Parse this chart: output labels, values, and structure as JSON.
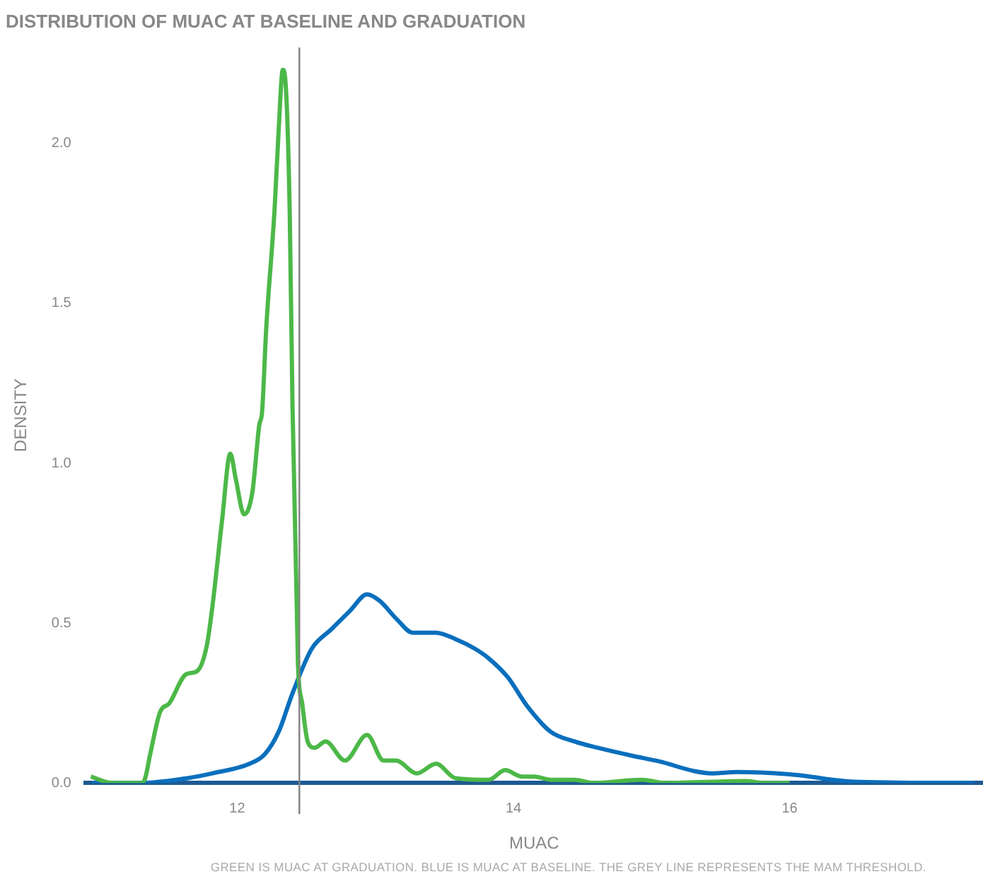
{
  "chart_data": {
    "type": "line",
    "title": "DISTRIBUTION OF MUAC AT BASELINE AND GRADUATION",
    "xlabel": "MUAC",
    "ylabel": "DENSITY",
    "annotations": [
      "GREEN IS MUAC AT GRADUATION. BLUE IS MUAC AT BASELINE. THE GREY LINE REPRESENTS THE MAM THRESHOLD."
    ],
    "xlim": [
      10.9,
      17.4
    ],
    "ylim": [
      0,
      2.3
    ],
    "xticks": [
      12,
      14,
      16
    ],
    "yticks": [
      {
        "value": 0,
        "label": "0.0"
      },
      {
        "value": 0.5,
        "label": "0.5"
      },
      {
        "value": 1,
        "label": "1.0"
      },
      {
        "value": 1.5,
        "label": "1.5"
      },
      {
        "value": 2,
        "label": "2.0"
      }
    ],
    "grid": false,
    "legend": false,
    "marker": "none",
    "line_style": "solid",
    "series": [
      {
        "color": "#4cb848",
        "x": [
          10.94,
          11.09,
          11.3,
          11.33,
          11.37,
          11.44,
          11.51,
          11.63,
          11.71,
          11.78,
          11.82,
          11.89,
          11.95,
          11.99,
          12.05,
          12.11,
          12.16,
          12.18,
          12.21,
          12.27,
          12.3,
          12.33,
          12.35,
          12.38,
          12.4,
          12.44,
          12.47,
          12.51,
          12.56,
          12.64,
          12.78,
          12.94,
          13.06,
          13.15,
          13.3,
          13.44,
          13.58,
          13.82,
          13.94,
          14.06,
          14.15,
          14.27,
          14.44,
          14.58,
          14.93,
          15.1,
          15.68,
          15.82,
          16.0
        ],
        "values": [
          0.02,
          0,
          0,
          0.01,
          0.09,
          0.22,
          0.25,
          0.34,
          0.35,
          0.43,
          0.55,
          0.82,
          1.03,
          0.95,
          0.84,
          0.91,
          1.12,
          1.16,
          1.42,
          1.79,
          2.04,
          2.23,
          2.19,
          1.79,
          1.19,
          0.37,
          0.25,
          0.13,
          0.11,
          0.13,
          0.07,
          0.15,
          0.07,
          0.07,
          0.03,
          0.06,
          0.015,
          0.01,
          0.04,
          0.02,
          0.02,
          0.01,
          0.01,
          0,
          0.01,
          0,
          0.006,
          0,
          0
        ]
      },
      {
        "color": "#0a6fbd",
        "x": [
          10.95,
          11.3,
          11.64,
          11.82,
          12.09,
          12.2,
          12.3,
          12.4,
          12.54,
          12.68,
          12.82,
          12.94,
          13.03,
          13.16,
          13.27,
          13.44,
          13.58,
          13.72,
          13.82,
          13.96,
          14.1,
          14.27,
          14.44,
          14.61,
          14.86,
          15.06,
          15.31,
          15.44,
          15.62,
          16.0,
          16.13,
          16.31,
          16.51,
          17.34
        ],
        "values": [
          0,
          0,
          0.015,
          0.03,
          0.06,
          0.09,
          0.16,
          0.28,
          0.42,
          0.48,
          0.54,
          0.59,
          0.57,
          0.51,
          0.47,
          0.47,
          0.45,
          0.42,
          0.39,
          0.33,
          0.24,
          0.16,
          0.13,
          0.11,
          0.085,
          0.067,
          0.037,
          0.03,
          0.034,
          0.027,
          0.021,
          0.01,
          0.003,
          0
        ]
      }
    ],
    "ref_lines": [
      {
        "axis": "x",
        "value": 12.45,
        "color": "#808080"
      }
    ]
  }
}
